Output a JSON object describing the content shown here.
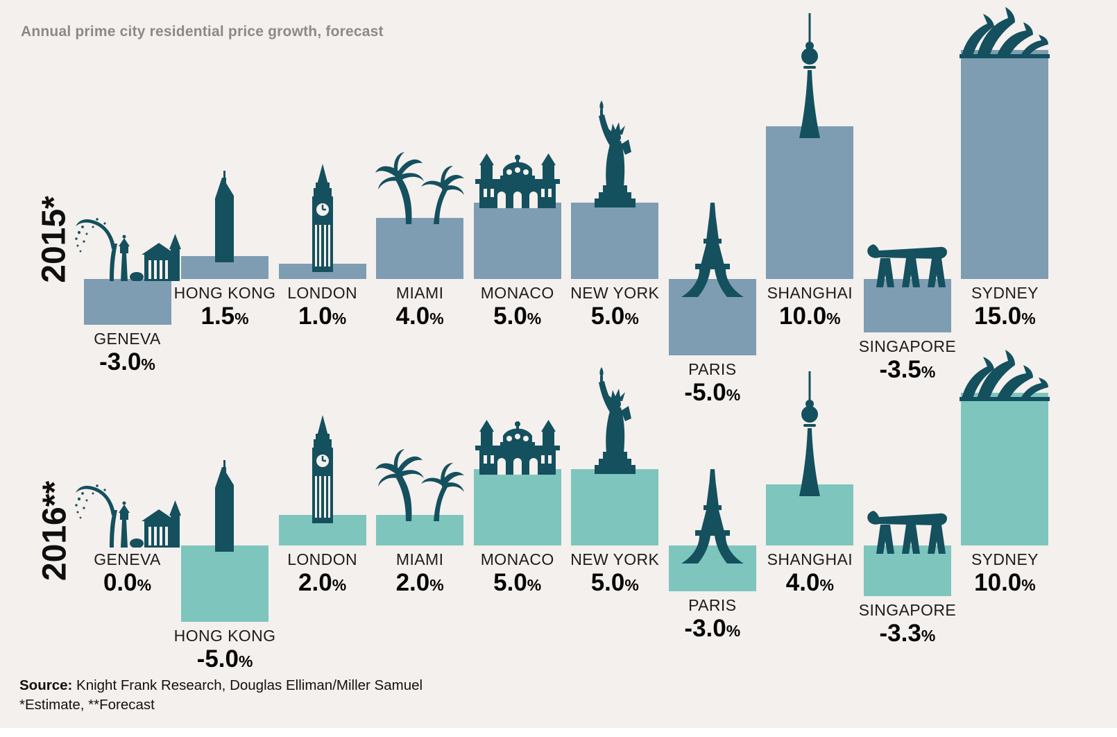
{
  "title": "Annual prime city residential price growth, forecast",
  "unit": "%",
  "colors": {
    "background": "#f4f0ed",
    "bar_2015": "#7e9db2",
    "bar_2016": "#7ec5be",
    "icon": "#15505e",
    "title_text": "#8a8a8a",
    "label_text": "#1c1c1c",
    "value_text": "#060606"
  },
  "footer": {
    "source_label": "Source:",
    "source_text": " Knight Frank Research, Douglas Elliman/Miller Samuel",
    "notes": "*Estimate, **Forecast"
  },
  "chart_data": {
    "type": "bar",
    "title": "Annual prime city residential price growth, forecast",
    "unit": "%",
    "orientation": "vertical",
    "ylim": [
      -5,
      15
    ],
    "grid": false,
    "legend_position": "rotated row labels on left",
    "categories": [
      "GENEVA",
      "HONG KONG",
      "LONDON",
      "MIAMI",
      "MONACO",
      "NEW YORK",
      "PARIS",
      "SHANGHAI",
      "SINGAPORE",
      "SYDNEY"
    ],
    "icons": [
      "geneva-jet-deau-fountain-icon",
      "hong-kong-skyscraper-icon",
      "london-big-ben-icon",
      "miami-palm-trees-icon",
      "monaco-casino-icon",
      "new-york-statue-of-liberty-icon",
      "paris-eiffel-tower-icon",
      "shanghai-tv-tower-icon",
      "singapore-marina-bay-sands-icon",
      "sydney-opera-house-icon"
    ],
    "series": [
      {
        "name": "2015*",
        "note": "Estimate",
        "color": "#7e9db2",
        "values": [
          -3.0,
          1.5,
          1.0,
          4.0,
          5.0,
          5.0,
          -5.0,
          10.0,
          -3.5,
          15.0
        ],
        "labels": [
          "-3.0",
          "1.5",
          "1.0",
          "4.0",
          "5.0",
          "5.0",
          "-5.0",
          "10.0",
          "-3.5",
          "15.0"
        ]
      },
      {
        "name": "2016**",
        "note": "Forecast",
        "color": "#7ec5be",
        "values": [
          0.0,
          -5.0,
          2.0,
          2.0,
          5.0,
          5.0,
          -3.0,
          4.0,
          -3.3,
          10.0
        ],
        "labels": [
          "0.0",
          "-5.0",
          "2.0",
          "2.0",
          "5.0",
          "5.0",
          "-3.0",
          "4.0",
          "-3.3",
          "10.0"
        ]
      }
    ]
  }
}
